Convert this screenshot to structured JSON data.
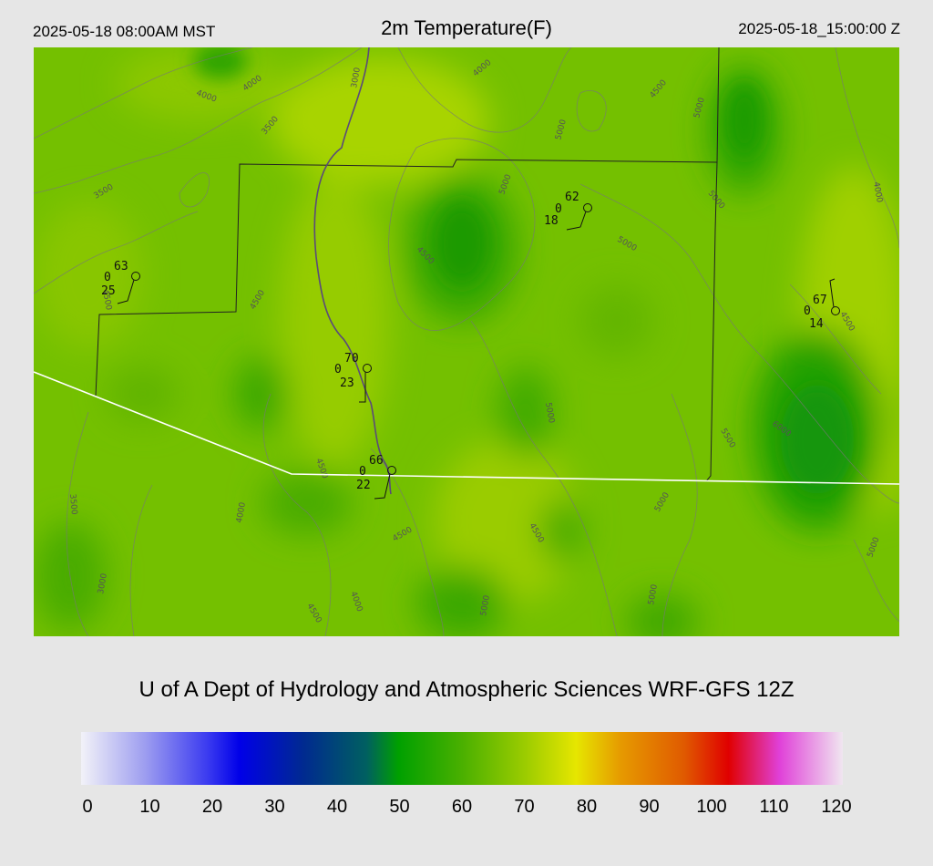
{
  "header": {
    "local_time": "2025-05-18 08:00AM MST",
    "title": "2m Temperature(F)",
    "utc_time": "2025-05-18_15:00:00 Z"
  },
  "credit": "U of A Dept of Hydrology and Atmospheric Sciences WRF-GFS 12Z",
  "colorbar": {
    "ticks": [
      "0",
      "10",
      "20",
      "30",
      "40",
      "50",
      "60",
      "70",
      "80",
      "90",
      "100",
      "110",
      "120"
    ],
    "stops": [
      {
        "value": 0,
        "color": "#f2f2f8"
      },
      {
        "value": 10,
        "color": "#9e9ef0"
      },
      {
        "value": 20,
        "color": "#3a3af0"
      },
      {
        "value": 25,
        "color": "#0000e8"
      },
      {
        "value": 35,
        "color": "#002a90"
      },
      {
        "value": 45,
        "color": "#006060"
      },
      {
        "value": 50,
        "color": "#00a000"
      },
      {
        "value": 60,
        "color": "#4ab000"
      },
      {
        "value": 70,
        "color": "#9ccc00"
      },
      {
        "value": 78,
        "color": "#e6e600"
      },
      {
        "value": 85,
        "color": "#e69a00"
      },
      {
        "value": 95,
        "color": "#e05a00"
      },
      {
        "value": 102,
        "color": "#e00000"
      },
      {
        "value": 110,
        "color": "#e040d8"
      },
      {
        "value": 120,
        "color": "#f0e6f0"
      }
    ]
  },
  "stations": [
    {
      "name": "station-west",
      "temp": "63",
      "wind": "0",
      "dew": "25"
    },
    {
      "name": "station-north",
      "temp": "62",
      "wind": "0",
      "dew": "18"
    },
    {
      "name": "station-east",
      "temp": "67",
      "wind": "0",
      "dew": "14"
    },
    {
      "name": "station-central",
      "temp": "70",
      "wind": "0",
      "dew": "23"
    },
    {
      "name": "station-south",
      "temp": "66",
      "wind": "0",
      "dew": "22"
    }
  ],
  "contour_labels": [
    "4000",
    "4000",
    "3000",
    "4000",
    "4500",
    "5000",
    "5000",
    "3500",
    "3500",
    "5000",
    "5000",
    "4000",
    "4500",
    "5000",
    "4500",
    "4500",
    "4500",
    "5000",
    "5500",
    "6000",
    "3500",
    "4500",
    "4000",
    "5000",
    "4500",
    "3000",
    "4500",
    "4000",
    "5000",
    "5000",
    "4500",
    "5000"
  ]
}
